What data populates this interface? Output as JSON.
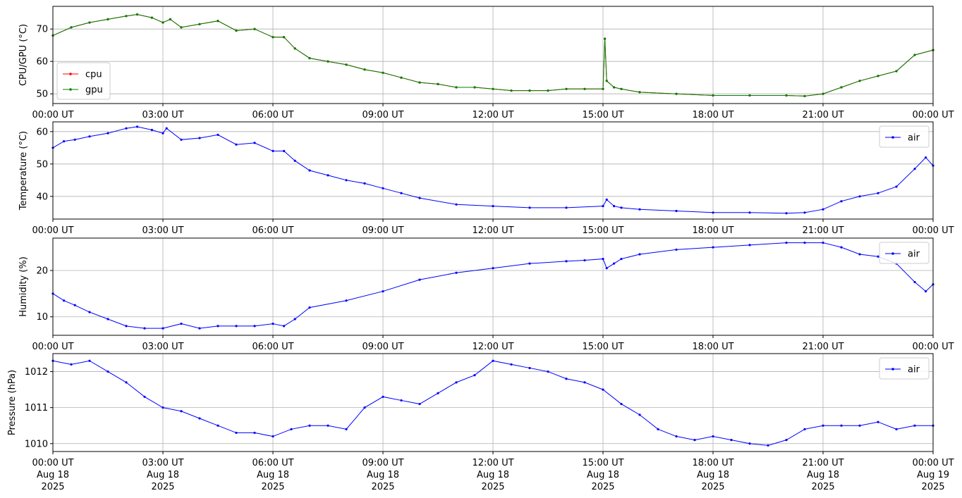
{
  "chart_data": [
    {
      "type": "line",
      "ylabel": "CPU/GPU (°C)",
      "ylim": [
        47,
        77
      ],
      "yticks": [
        50,
        60,
        70
      ],
      "xlim": [
        0,
        24
      ],
      "xtick_labels": [
        "00:00 UT",
        "03:00 UT",
        "06:00 UT",
        "09:00 UT",
        "12:00 UT",
        "15:00 UT",
        "18:00 UT",
        "21:00 UT",
        "00:00 UT"
      ],
      "grid": true,
      "legend": "lower-left",
      "series": [
        {
          "name": "cpu",
          "color": "#ff0000",
          "x": [
            0,
            0.5,
            1,
            1.5,
            2,
            2.3,
            2.7,
            3,
            3.2,
            3.5,
            4,
            4.5,
            5,
            5.5,
            6,
            6.3,
            6.6,
            7,
            7.5,
            8,
            8.5,
            9,
            9.5,
            10,
            10.5,
            11,
            11.5,
            12,
            12.5,
            13,
            13.5,
            14,
            14.5,
            15,
            15.05,
            15.1,
            15.3,
            15.5,
            16,
            17,
            18,
            19,
            20,
            20.5,
            21,
            21.5,
            22,
            22.5,
            23,
            23.5,
            24
          ],
          "y": [
            68,
            70.5,
            72,
            73,
            74,
            74.5,
            73.5,
            72,
            73,
            70.5,
            71.5,
            72.5,
            69.5,
            70,
            67.5,
            67.5,
            64,
            61,
            60,
            59,
            57.5,
            56.5,
            55,
            53.5,
            53,
            52,
            52,
            51.5,
            51,
            51,
            51,
            51.5,
            51.5,
            51.5,
            67,
            54,
            52,
            51.5,
            50.5,
            50,
            49.5,
            49.5,
            49.5,
            49.3,
            50,
            52,
            54,
            55.5,
            57,
            62,
            63.5
          ]
        },
        {
          "name": "gpu",
          "color": "#008000",
          "x": [
            0,
            0.5,
            1,
            1.5,
            2,
            2.3,
            2.7,
            3,
            3.2,
            3.5,
            4,
            4.5,
            5,
            5.5,
            6,
            6.3,
            6.6,
            7,
            7.5,
            8,
            8.5,
            9,
            9.5,
            10,
            10.5,
            11,
            11.5,
            12,
            12.5,
            13,
            13.5,
            14,
            14.5,
            15,
            15.05,
            15.1,
            15.3,
            15.5,
            16,
            17,
            18,
            19,
            20,
            20.5,
            21,
            21.5,
            22,
            22.5,
            23,
            23.5,
            24
          ],
          "y": [
            68,
            70.5,
            72,
            73,
            74,
            74.5,
            73.5,
            72,
            73,
            70.5,
            71.5,
            72.5,
            69.5,
            70,
            67.5,
            67.5,
            64,
            61,
            60,
            59,
            57.5,
            56.5,
            55,
            53.5,
            53,
            52,
            52,
            51.5,
            51,
            51,
            51,
            51.5,
            51.5,
            51.5,
            67,
            54,
            52,
            51.5,
            50.5,
            50,
            49.5,
            49.5,
            49.5,
            49.3,
            50,
            52,
            54,
            55.5,
            57,
            62,
            63.5
          ]
        }
      ]
    },
    {
      "type": "line",
      "ylabel": "Temperature (°C)",
      "ylim": [
        33,
        63
      ],
      "yticks": [
        40,
        50,
        60
      ],
      "xlim": [
        0,
        24
      ],
      "xtick_labels": [
        "00:00 UT",
        "03:00 UT",
        "06:00 UT",
        "09:00 UT",
        "12:00 UT",
        "15:00 UT",
        "18:00 UT",
        "21:00 UT",
        "00:00 UT"
      ],
      "grid": true,
      "legend": "upper-right",
      "series": [
        {
          "name": "air",
          "color": "#0000ff",
          "x": [
            0,
            0.3,
            0.6,
            1,
            1.5,
            2,
            2.3,
            2.7,
            3,
            3.1,
            3.5,
            4,
            4.5,
            5,
            5.5,
            6,
            6.3,
            6.6,
            7,
            7.5,
            8,
            8.5,
            9,
            9.5,
            10,
            11,
            12,
            13,
            14,
            15,
            15.1,
            15.3,
            15.5,
            16,
            17,
            18,
            19,
            20,
            20.5,
            21,
            21.5,
            22,
            22.5,
            23,
            23.5,
            23.8,
            24
          ],
          "y": [
            55,
            57,
            57.5,
            58.5,
            59.5,
            61,
            61.5,
            60.5,
            59.5,
            61,
            57.5,
            58,
            59,
            56,
            56.5,
            54,
            54,
            51,
            48,
            46.5,
            45,
            44,
            42.5,
            41,
            39.5,
            37.5,
            37,
            36.5,
            36.5,
            37,
            39,
            37,
            36.5,
            36,
            35.5,
            35,
            35,
            34.8,
            35,
            36,
            38.5,
            40,
            41,
            43,
            48.5,
            52,
            49.5
          ]
        }
      ]
    },
    {
      "type": "line",
      "ylabel": "Humidity (%)",
      "ylim": [
        6,
        27
      ],
      "yticks": [
        10,
        20
      ],
      "xlim": [
        0,
        24
      ],
      "xtick_labels": [
        "00:00 UT",
        "03:00 UT",
        "06:00 UT",
        "09:00 UT",
        "12:00 UT",
        "15:00 UT",
        "18:00 UT",
        "21:00 UT",
        "00:00 UT"
      ],
      "grid": true,
      "legend": "upper-right",
      "series": [
        {
          "name": "air",
          "color": "#0000ff",
          "x": [
            0,
            0.3,
            0.6,
            1,
            1.5,
            2,
            2.5,
            3,
            3.5,
            4,
            4.5,
            5,
            5.5,
            6,
            6.3,
            6.6,
            7,
            8,
            9,
            10,
            11,
            12,
            13,
            14,
            14.5,
            15,
            15.1,
            15.3,
            15.5,
            16,
            17,
            18,
            19,
            20,
            20.5,
            21,
            21.5,
            22,
            22.5,
            23,
            23.5,
            23.8,
            24
          ],
          "y": [
            15,
            13.5,
            12.5,
            11,
            9.5,
            8,
            7.5,
            7.5,
            8.5,
            7.5,
            8,
            8,
            8,
            8.5,
            8,
            9.5,
            12,
            13.5,
            15.5,
            18,
            19.5,
            20.5,
            21.5,
            22,
            22.2,
            22.5,
            20.5,
            21.5,
            22.5,
            23.5,
            24.5,
            25,
            25.5,
            26,
            26,
            26,
            25,
            23.5,
            23,
            21.5,
            17.5,
            15.5,
            17
          ]
        }
      ]
    },
    {
      "type": "line",
      "ylabel": "Pressure (hPa)",
      "ylim": [
        1009.78,
        1012.5
      ],
      "yticks": [
        1010,
        1011,
        1012
      ],
      "xlim": [
        0,
        24
      ],
      "xtick_labels": [
        "00:00 UT\nAug 18\n2025",
        "03:00 UT\nAug 18\n2025",
        "06:00 UT\nAug 18\n2025",
        "09:00 UT\nAug 18\n2025",
        "12:00 UT\nAug 18\n2025",
        "15:00 UT\nAug 18\n2025",
        "18:00 UT\nAug 18\n2025",
        "21:00 UT\nAug 18\n2025",
        "00:00 UT\nAug 19\n2025"
      ],
      "grid": true,
      "legend": "upper-right",
      "series": [
        {
          "name": "air",
          "color": "#0000ff",
          "x": [
            0,
            0.5,
            1,
            1.5,
            2,
            2.5,
            3,
            3.5,
            4,
            4.5,
            5,
            5.5,
            6,
            6.5,
            7,
            7.5,
            8,
            8.5,
            9,
            9.5,
            10,
            10.5,
            11,
            11.5,
            12,
            12.5,
            13,
            13.5,
            14,
            14.5,
            15,
            15.5,
            16,
            16.5,
            17,
            17.5,
            18,
            18.5,
            19,
            19.5,
            20,
            20.5,
            21,
            21.5,
            22,
            22.5,
            23,
            23.5,
            24
          ],
          "y": [
            1012.3,
            1012.2,
            1012.3,
            1012,
            1011.7,
            1011.3,
            1011,
            1010.9,
            1010.7,
            1010.5,
            1010.3,
            1010.3,
            1010.2,
            1010.4,
            1010.5,
            1010.5,
            1010.4,
            1011,
            1011.3,
            1011.2,
            1011.1,
            1011.4,
            1011.7,
            1011.9,
            1012.3,
            1012.2,
            1012.1,
            1012,
            1011.8,
            1011.7,
            1011.5,
            1011.1,
            1010.8,
            1010.4,
            1010.2,
            1010.1,
            1010.2,
            1010.1,
            1010,
            1009.95,
            1010.1,
            1010.4,
            1010.5,
            1010.5,
            1010.5,
            1010.6,
            1010.4,
            1010.5,
            1010.5
          ]
        }
      ]
    }
  ]
}
